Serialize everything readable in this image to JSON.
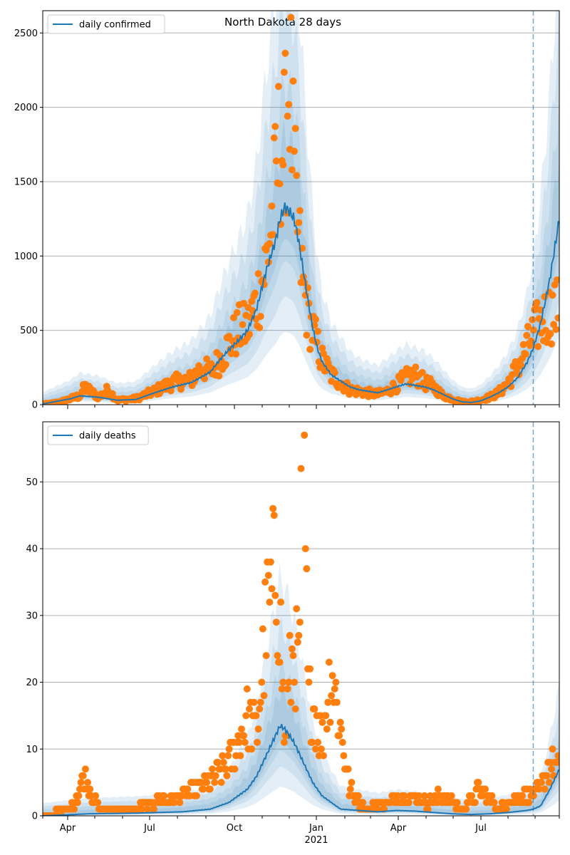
{
  "colors": {
    "line": "#1f77b4",
    "points": "#ff7f0e",
    "band": "#1f77b4",
    "grid": "#b0b0b0",
    "vline": "#1f77b4"
  },
  "chart_data": [
    {
      "type": "line",
      "title": "North Dakota 28 days",
      "series": [
        {
          "name": "daily confirmed"
        }
      ],
      "ylim": [
        0,
        2650
      ],
      "yticks": [
        0,
        500,
        1000,
        1500,
        2000,
        2500
      ],
      "xticks": [
        "Apr",
        "Jul",
        "Oct",
        "Jan",
        "Apr",
        "Jul"
      ],
      "year_label": "2021",
      "grid": "horizontal",
      "legend_position": "top-left",
      "x_range_days": [
        0,
        555
      ],
      "forecast_start_day": 527,
      "line_keypoints": [
        [
          0,
          5
        ],
        [
          30,
          40
        ],
        [
          40,
          60
        ],
        [
          60,
          50
        ],
        [
          80,
          30
        ],
        [
          100,
          35
        ],
        [
          120,
          80
        ],
        [
          140,
          120
        ],
        [
          160,
          150
        ],
        [
          180,
          220
        ],
        [
          190,
          300
        ],
        [
          200,
          370
        ],
        [
          210,
          430
        ],
        [
          220,
          500
        ],
        [
          230,
          650
        ],
        [
          240,
          900
        ],
        [
          250,
          1100
        ],
        [
          255,
          1250
        ],
        [
          260,
          1330
        ],
        [
          265,
          1300
        ],
        [
          270,
          1250
        ],
        [
          275,
          1100
        ],
        [
          280,
          900
        ],
        [
          285,
          700
        ],
        [
          290,
          520
        ],
        [
          295,
          380
        ],
        [
          300,
          290
        ],
        [
          310,
          200
        ],
        [
          320,
          160
        ],
        [
          330,
          120
        ],
        [
          340,
          100
        ],
        [
          350,
          90
        ],
        [
          360,
          80
        ],
        [
          370,
          100
        ],
        [
          380,
          120
        ],
        [
          390,
          140
        ],
        [
          400,
          130
        ],
        [
          410,
          120
        ],
        [
          420,
          100
        ],
        [
          430,
          70
        ],
        [
          440,
          40
        ],
        [
          450,
          20
        ],
        [
          460,
          15
        ],
        [
          470,
          25
        ],
        [
          480,
          50
        ],
        [
          490,
          80
        ],
        [
          500,
          120
        ],
        [
          510,
          180
        ],
        [
          520,
          280
        ],
        [
          527,
          380
        ],
        [
          535,
          550
        ],
        [
          545,
          850
        ],
        [
          555,
          1250
        ]
      ],
      "points_keypoints": [
        [
          0,
          5
        ],
        [
          10,
          10
        ],
        [
          20,
          20
        ],
        [
          30,
          40
        ],
        [
          40,
          60
        ],
        [
          45,
          120
        ],
        [
          60,
          50
        ],
        [
          70,
          100
        ],
        [
          80,
          30
        ],
        [
          100,
          40
        ],
        [
          120,
          90
        ],
        [
          140,
          150
        ],
        [
          160,
          170
        ],
        [
          170,
          250
        ],
        [
          180,
          220
        ],
        [
          190,
          300
        ],
        [
          200,
          400
        ],
        [
          210,
          500
        ],
        [
          220,
          520
        ],
        [
          230,
          700
        ],
        [
          240,
          950
        ],
        [
          245,
          1200
        ],
        [
          250,
          1450
        ],
        [
          255,
          1800
        ],
        [
          260,
          1700
        ],
        [
          265,
          2300
        ],
        [
          270,
          1500
        ],
        [
          275,
          1100
        ],
        [
          280,
          800
        ],
        [
          285,
          600
        ],
        [
          290,
          500
        ],
        [
          300,
          300
        ],
        [
          310,
          200
        ],
        [
          320,
          150
        ],
        [
          330,
          100
        ],
        [
          340,
          90
        ],
        [
          350,
          80
        ],
        [
          360,
          70
        ],
        [
          370,
          90
        ],
        [
          380,
          130
        ],
        [
          390,
          180
        ],
        [
          400,
          200
        ],
        [
          410,
          150
        ],
        [
          420,
          120
        ],
        [
          430,
          60
        ],
        [
          440,
          40
        ],
        [
          450,
          20
        ],
        [
          460,
          20
        ],
        [
          470,
          30
        ],
        [
          480,
          50
        ],
        [
          490,
          80
        ],
        [
          500,
          150
        ],
        [
          510,
          250
        ],
        [
          520,
          380
        ],
        [
          527,
          480
        ],
        [
          535,
          560
        ],
        [
          545,
          620
        ],
        [
          555,
          640
        ]
      ],
      "band_widths": [
        0.35,
        0.6,
        1.0,
        1.4
      ],
      "band_opacities": [
        0.1,
        0.1,
        0.1,
        0.12
      ]
    },
    {
      "type": "line",
      "title": "",
      "series": [
        {
          "name": "daily deaths"
        }
      ],
      "ylim": [
        0,
        59
      ],
      "yticks": [
        0,
        10,
        20,
        30,
        40,
        50
      ],
      "xticks": [
        "Apr",
        "Jul",
        "Oct",
        "Jan",
        "Apr",
        "Jul"
      ],
      "year_label": "2021",
      "grid": "horizontal",
      "legend_position": "top-left",
      "x_range_days": [
        0,
        555
      ],
      "forecast_start_day": 527,
      "line_keypoints": [
        [
          0,
          0
        ],
        [
          50,
          0.3
        ],
        [
          100,
          0.4
        ],
        [
          150,
          0.6
        ],
        [
          180,
          1
        ],
        [
          200,
          2
        ],
        [
          220,
          4
        ],
        [
          230,
          6
        ],
        [
          240,
          9
        ],
        [
          250,
          12
        ],
        [
          255,
          13.5
        ],
        [
          260,
          13
        ],
        [
          265,
          12
        ],
        [
          270,
          11
        ],
        [
          280,
          8
        ],
        [
          290,
          5
        ],
        [
          300,
          3
        ],
        [
          310,
          2
        ],
        [
          320,
          1
        ],
        [
          340,
          0.8
        ],
        [
          360,
          0.6
        ],
        [
          380,
          0.8
        ],
        [
          400,
          0.7
        ],
        [
          420,
          0.5
        ],
        [
          440,
          0.3
        ],
        [
          460,
          0.2
        ],
        [
          480,
          0.3
        ],
        [
          500,
          0.5
        ],
        [
          520,
          0.8
        ],
        [
          527,
          1
        ],
        [
          535,
          1.5
        ],
        [
          545,
          4
        ],
        [
          555,
          7
        ]
      ],
      "points_keypoints": [
        [
          0,
          0
        ],
        [
          30,
          1
        ],
        [
          40,
          4
        ],
        [
          45,
          6
        ],
        [
          60,
          1
        ],
        [
          80,
          1
        ],
        [
          100,
          1
        ],
        [
          120,
          2
        ],
        [
          150,
          3
        ],
        [
          180,
          5
        ],
        [
          200,
          8
        ],
        [
          210,
          11
        ],
        [
          220,
          15
        ],
        [
          230,
          12
        ],
        [
          240,
          29
        ],
        [
          245,
          32
        ],
        [
          250,
          37
        ],
        [
          255,
          30
        ],
        [
          260,
          10
        ],
        [
          265,
          20
        ],
        [
          270,
          25
        ],
        [
          275,
          22
        ],
        [
          280,
          58
        ],
        [
          285,
          17
        ],
        [
          290,
          17
        ],
        [
          300,
          11
        ],
        [
          310,
          23
        ],
        [
          320,
          13
        ],
        [
          330,
          4
        ],
        [
          340,
          2
        ],
        [
          350,
          1
        ],
        [
          370,
          2
        ],
        [
          390,
          3
        ],
        [
          410,
          2
        ],
        [
          430,
          3
        ],
        [
          450,
          1
        ],
        [
          470,
          4
        ],
        [
          490,
          1
        ],
        [
          510,
          3
        ],
        [
          527,
          3
        ],
        [
          535,
          4
        ],
        [
          545,
          8
        ],
        [
          555,
          7
        ]
      ],
      "band_widths": [
        0.35,
        0.6,
        1.0,
        1.5
      ],
      "band_opacities": [
        0.1,
        0.1,
        0.1,
        0.12
      ]
    }
  ]
}
